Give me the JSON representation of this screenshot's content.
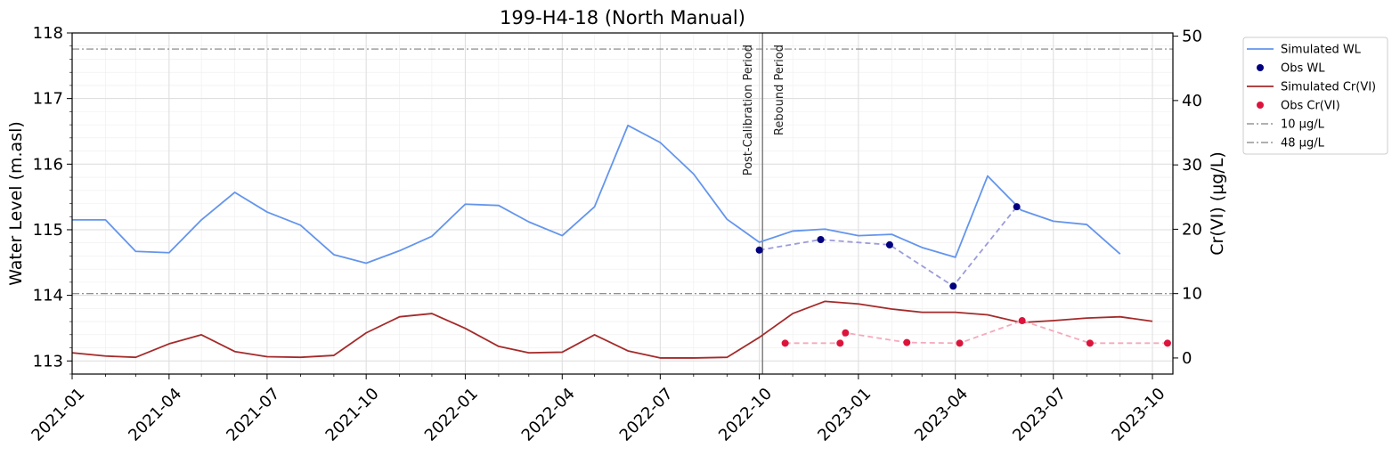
{
  "chart_data": {
    "type": "line",
    "title": "199-H4-18 (North Manual)",
    "ylabel_left": "Water Level (m.asl)",
    "ylabel_right": "Cr(VI) (μg/L)",
    "ylim_left": [
      112.8,
      118
    ],
    "ylim_right": [
      -2.5,
      50.5
    ],
    "xlim": [
      "2021-01-01",
      "2023-10-20"
    ],
    "x_tick_labels": [
      "2021-01",
      "2021-04",
      "2021-07",
      "2021-10",
      "2022-01",
      "2022-04",
      "2022-07",
      "2022-10",
      "2023-01",
      "2023-04",
      "2023-07",
      "2023-10"
    ],
    "y_left_tick_labels": [
      "113",
      "114",
      "115",
      "116",
      "117",
      "118"
    ],
    "y_right_tick_labels": [
      "0",
      "10",
      "20",
      "30",
      "40",
      "50"
    ],
    "grid": true,
    "legend_position": "outside-right",
    "vertical_line": {
      "date": "2022-10-04",
      "labels": [
        "Post-Calibration Period",
        "Rebound Period"
      ]
    },
    "series": [
      {
        "name": "Simulated WL",
        "axis": "left",
        "style": "line",
        "color": "#6495ED",
        "points": [
          [
            "2021-01-01",
            115.15
          ],
          [
            "2021-02-01",
            115.15
          ],
          [
            "2021-03-01",
            114.67
          ],
          [
            "2021-04-01",
            114.65
          ],
          [
            "2021-05-01",
            115.15
          ],
          [
            "2021-06-01",
            115.57
          ],
          [
            "2021-07-01",
            115.27
          ],
          [
            "2021-08-01",
            115.07
          ],
          [
            "2021-09-01",
            114.62
          ],
          [
            "2021-10-01",
            114.49
          ],
          [
            "2021-11-01",
            114.68
          ],
          [
            "2021-12-01",
            114.9
          ],
          [
            "2022-01-01",
            115.39
          ],
          [
            "2022-02-01",
            115.37
          ],
          [
            "2022-03-01",
            115.12
          ],
          [
            "2022-04-01",
            114.91
          ],
          [
            "2022-05-01",
            115.35
          ],
          [
            "2022-06-01",
            116.59
          ],
          [
            "2022-07-01",
            116.33
          ],
          [
            "2022-08-01",
            115.85
          ],
          [
            "2022-09-01",
            115.16
          ],
          [
            "2022-10-01",
            114.81
          ],
          [
            "2022-11-01",
            114.98
          ],
          [
            "2022-12-01",
            115.01
          ],
          [
            "2023-01-01",
            114.91
          ],
          [
            "2023-02-01",
            114.93
          ],
          [
            "2023-03-01",
            114.73
          ],
          [
            "2023-04-01",
            114.58
          ],
          [
            "2023-05-01",
            115.82
          ],
          [
            "2023-06-01",
            115.3
          ],
          [
            "2023-07-01",
            115.13
          ],
          [
            "2023-08-01",
            115.08
          ],
          [
            "2023-09-01",
            114.63
          ]
        ]
      },
      {
        "name": "Obs WL",
        "axis": "left",
        "style": "points",
        "color": "#000080",
        "connector_color": "#9C9CDB",
        "points": [
          [
            "2022-10-01",
            114.69
          ],
          [
            "2022-11-27",
            114.85
          ],
          [
            "2023-01-30",
            114.77
          ],
          [
            "2023-03-30",
            114.14
          ],
          [
            "2023-05-28",
            115.35
          ]
        ]
      },
      {
        "name": "Simulated Cr(VI)",
        "axis": "right",
        "style": "line",
        "color": "#A52A2A",
        "points": [
          [
            "2021-01-01",
            0.8
          ],
          [
            "2021-02-01",
            0.3
          ],
          [
            "2021-03-01",
            0.1
          ],
          [
            "2021-04-01",
            2.2
          ],
          [
            "2021-05-01",
            3.6
          ],
          [
            "2021-06-01",
            1.0
          ],
          [
            "2021-07-01",
            0.2
          ],
          [
            "2021-08-01",
            0.1
          ],
          [
            "2021-09-01",
            0.4
          ],
          [
            "2021-10-01",
            3.9
          ],
          [
            "2021-11-01",
            6.4
          ],
          [
            "2021-12-01",
            6.9
          ],
          [
            "2022-01-01",
            4.6
          ],
          [
            "2022-02-01",
            1.8
          ],
          [
            "2022-03-01",
            0.8
          ],
          [
            "2022-04-01",
            0.9
          ],
          [
            "2022-05-01",
            3.6
          ],
          [
            "2022-06-01",
            1.1
          ],
          [
            "2022-07-01",
            0.0
          ],
          [
            "2022-08-01",
            0.0
          ],
          [
            "2022-09-01",
            0.1
          ],
          [
            "2022-10-01",
            3.2
          ],
          [
            "2022-11-01",
            6.9
          ],
          [
            "2022-12-01",
            8.8
          ],
          [
            "2023-01-01",
            8.4
          ],
          [
            "2023-02-01",
            7.6
          ],
          [
            "2023-03-01",
            7.1
          ],
          [
            "2023-04-01",
            7.1
          ],
          [
            "2023-05-01",
            6.7
          ],
          [
            "2023-06-01",
            5.5
          ],
          [
            "2023-07-01",
            5.8
          ],
          [
            "2023-08-01",
            6.2
          ],
          [
            "2023-09-01",
            6.4
          ],
          [
            "2023-10-01",
            5.7
          ]
        ]
      },
      {
        "name": "Obs Cr(VI)",
        "axis": "right",
        "style": "points",
        "color": "#DC143C",
        "connector_color": "#F5A9BC",
        "points": [
          [
            "2022-10-25",
            2.3
          ],
          [
            "2022-12-15",
            2.3
          ],
          [
            "2022-12-20",
            3.9
          ],
          [
            "2023-02-15",
            2.4
          ],
          [
            "2023-04-05",
            2.3
          ],
          [
            "2023-06-02",
            5.8
          ],
          [
            "2023-08-04",
            2.3
          ],
          [
            "2023-10-15",
            2.3
          ]
        ]
      },
      {
        "name": "10 µg/L",
        "axis": "right",
        "style": "hline",
        "color": "#808080",
        "value": 10
      },
      {
        "name": "48 µg/L",
        "axis": "right",
        "style": "hline",
        "color": "#808080",
        "value": 48
      }
    ]
  }
}
